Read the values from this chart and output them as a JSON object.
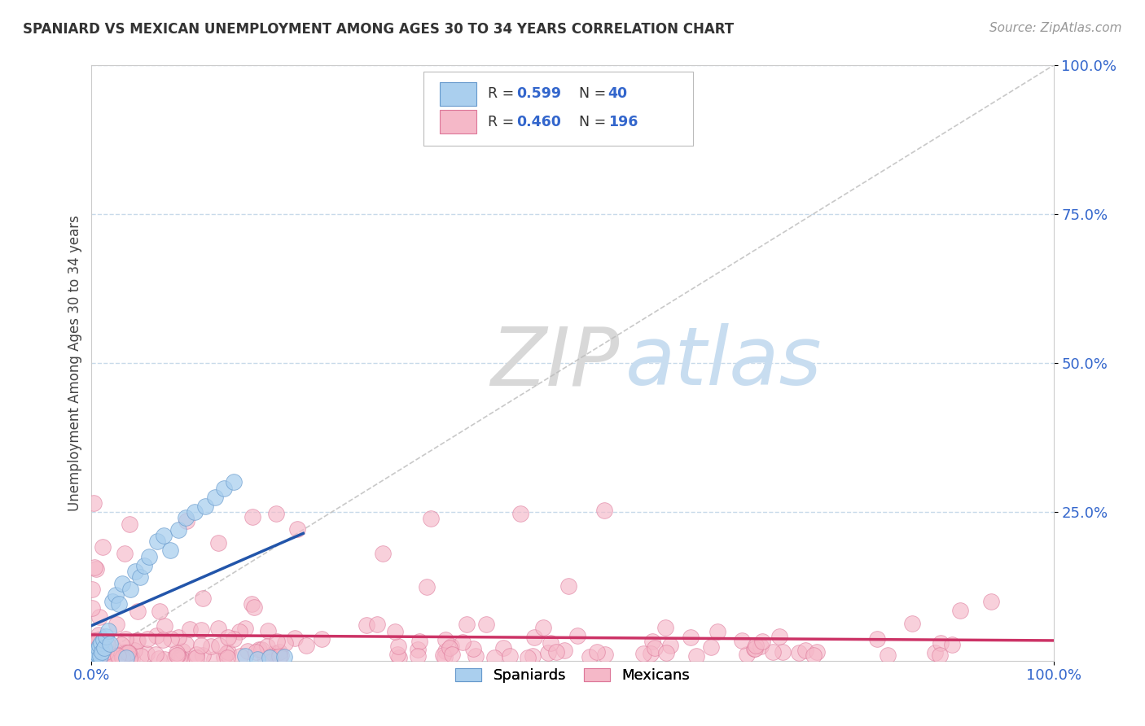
{
  "title": "SPANIARD VS MEXICAN UNEMPLOYMENT AMONG AGES 30 TO 34 YEARS CORRELATION CHART",
  "source": "Source: ZipAtlas.com",
  "ylabel": "Unemployment Among Ages 30 to 34 years",
  "ytick_labels": [
    "25.0%",
    "50.0%",
    "75.0%",
    "100.0%"
  ],
  "ytick_values": [
    0.25,
    0.5,
    0.75,
    1.0
  ],
  "xlim": [
    0.0,
    1.0
  ],
  "ylim": [
    0.0,
    1.0
  ],
  "spaniard_color": "#aacfee",
  "spaniard_edge_color": "#6699cc",
  "spaniard_line_color": "#2255aa",
  "mexican_color": "#f5b8c8",
  "mexican_edge_color": "#dd7799",
  "mexican_line_color": "#cc3366",
  "legend_r_color": "#3366cc",
  "background_color": "#ffffff",
  "grid_color": "#c8daea",
  "watermark_zip_color": "#d8d8d8",
  "watermark_atlas_color": "#c8ddf0",
  "spaniards_R": 0.599,
  "spaniards_N": 40,
  "mexicans_R": 0.46,
  "mexicans_N": 196
}
